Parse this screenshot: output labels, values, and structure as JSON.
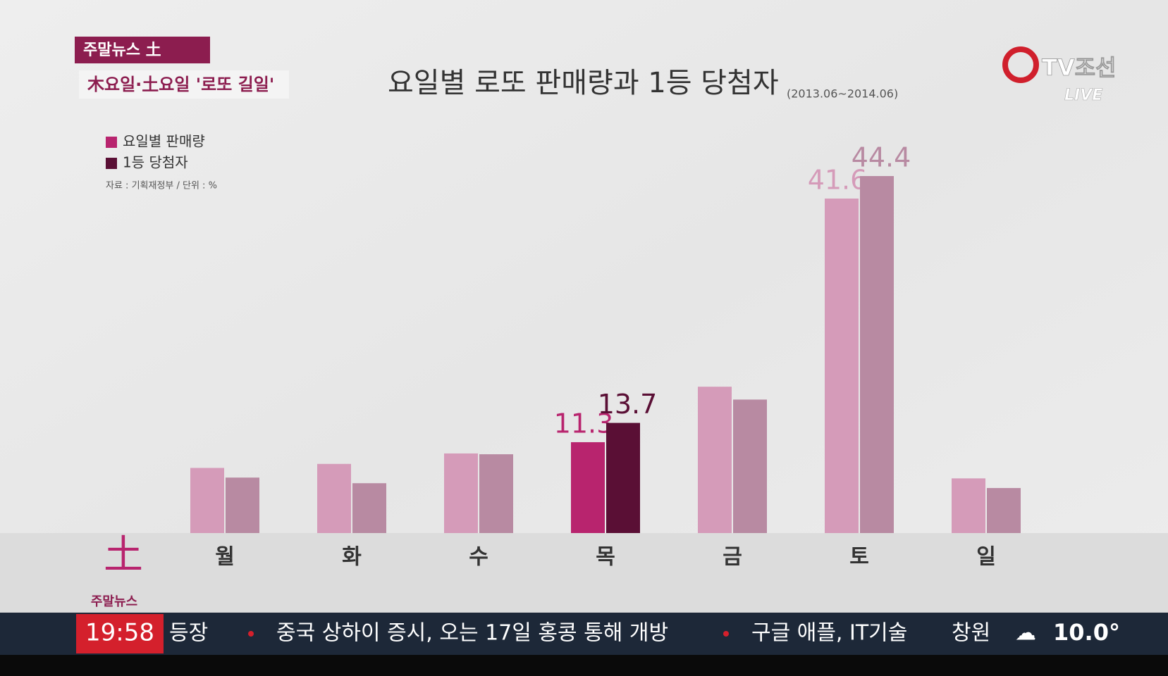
{
  "header": {
    "program": "주말뉴스 土",
    "headline": "木요일·土요일 '로또 길일'",
    "logo": "TV조선",
    "live": "LIVE"
  },
  "chart_data": {
    "type": "bar",
    "title": "요일별 로또 판매량과 1등 당첨자",
    "subtitle": "(2013.06~2014.06)",
    "note": "자료 : 기획재정부 / 단위 : %",
    "categories": [
      "월",
      "화",
      "수",
      "목",
      "금",
      "토",
      "일"
    ],
    "series": [
      {
        "name": "요일별 판매량",
        "color": "#b8246e",
        "bar_colors": [
          "#d59bb9",
          "#d59bb9",
          "#d59bb9",
          "#b8246e",
          "#d59bb9",
          "#d59bb9",
          "#d59bb9"
        ],
        "values": [
          8.1,
          8.6,
          9.9,
          11.3,
          18.2,
          41.6,
          6.8
        ],
        "value_labels": [
          null,
          null,
          null,
          "11.3",
          null,
          "41.6",
          null
        ]
      },
      {
        "name": "1등 당첨자",
        "color": "#5a0f35",
        "bar_colors": [
          "#b88aa2",
          "#b88aa2",
          "#b88aa2",
          "#5a0f35",
          "#b88aa2",
          "#b88aa2",
          "#b88aa2"
        ],
        "values": [
          6.9,
          6.2,
          9.8,
          13.7,
          16.6,
          44.4,
          5.6
        ],
        "value_labels": [
          null,
          null,
          null,
          "13.7",
          null,
          "44.4",
          null
        ]
      }
    ]
  },
  "corner": {
    "mark": "土",
    "label": "주말뉴스"
  },
  "ticker": {
    "time": "19:58",
    "items": [
      "등장",
      "중국 상하이 증시, 오는 17일 홍콩 통해 개방",
      "구글 애플, IT기술"
    ],
    "city": "창원",
    "temperature": "10.0°"
  }
}
